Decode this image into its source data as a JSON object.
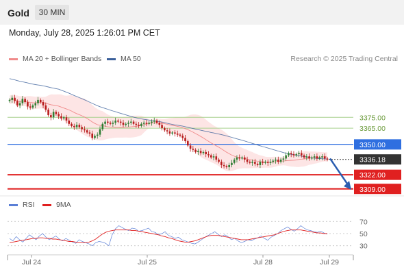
{
  "header": {
    "instrument": "Gold",
    "timeframe": "30 MIN",
    "datetime": "Monday, July 28, 2025 1:26:01 PM CET"
  },
  "legend": {
    "items": [
      {
        "label": "MA 20 + Bollinger Bands",
        "color": "#f08a8a"
      },
      {
        "label": "MA 50",
        "color": "#3a5f9a"
      }
    ],
    "credit": "Research © 2025 Trading Central"
  },
  "rsi_legend": {
    "items": [
      {
        "label": "RSI",
        "color": "#5b7fd6"
      },
      {
        "label": "9MA",
        "color": "#e02020"
      }
    ]
  },
  "colors": {
    "candle_up": "#2e7d32",
    "candle_down": "#b71c1c",
    "bollinger_fill": "#fde2e2",
    "ma20": "#f08a8a",
    "ma50": "#3a5f9a",
    "resistance": "#a8d08d",
    "pivot": "#2f6fe0",
    "support": "#e02020",
    "current_price_tag": "#333333",
    "arrow": "#2a5db0"
  },
  "chart_data": [
    {
      "type": "candlestick",
      "title": "Gold",
      "x_ticks": [
        "Jul 24",
        "Jul 25",
        "Jul 28",
        "Jul 29"
      ],
      "ylim": [
        3300,
        3420
      ],
      "levels": [
        {
          "value": 3375.0,
          "label": "3375.00",
          "kind": "resistance"
        },
        {
          "value": 3365.0,
          "label": "3365.00",
          "kind": "resistance"
        },
        {
          "value": 3350.0,
          "label": "3350.00",
          "kind": "pivot"
        },
        {
          "value": 3336.18,
          "label": "3336.18",
          "kind": "current"
        },
        {
          "value": 3322.0,
          "label": "3322.00",
          "kind": "support"
        },
        {
          "value": 3309.0,
          "label": "3309.00",
          "kind": "support"
        }
      ],
      "close_path": [
        3391,
        3393,
        3390,
        3386,
        3388,
        3392,
        3389,
        3385,
        3384,
        3386,
        3388,
        3391,
        3389,
        3386,
        3382,
        3377,
        3375,
        3380,
        3378,
        3376,
        3374,
        3375,
        3372,
        3369,
        3367,
        3366,
        3368,
        3366,
        3364,
        3363,
        3361,
        3360,
        3356,
        3358,
        3359,
        3364,
        3369,
        3371,
        3370,
        3369,
        3370,
        3372,
        3371,
        3370,
        3368,
        3369,
        3370,
        3371,
        3369,
        3368,
        3367,
        3369,
        3370,
        3369,
        3370,
        3371,
        3372,
        3370,
        3368,
        3365,
        3363,
        3362,
        3360,
        3361,
        3360,
        3359,
        3358,
        3356,
        3353,
        3349,
        3346,
        3345,
        3343,
        3344,
        3342,
        3343,
        3341,
        3340,
        3338,
        3339,
        3336,
        3334,
        3331,
        3330,
        3329,
        3331,
        3333,
        3336,
        3338,
        3337,
        3338,
        3336,
        3334,
        3333,
        3334,
        3332,
        3331,
        3334,
        3333,
        3334,
        3333,
        3334,
        3335,
        3336,
        3334,
        3336,
        3337,
        3340,
        3342,
        3341,
        3340,
        3341,
        3342,
        3340,
        3338,
        3339,
        3337,
        3338,
        3339,
        3337,
        3338,
        3339,
        3337,
        3336
      ]
    },
    {
      "type": "line",
      "title": "RSI",
      "y_ticks": [
        70,
        50,
        30
      ],
      "ylim": [
        15,
        85
      ],
      "series": [
        {
          "name": "RSI",
          "values": [
            42,
            38,
            45,
            40,
            36,
            42,
            48,
            44,
            40,
            46,
            50,
            44,
            40,
            43,
            46,
            41,
            38,
            42,
            39,
            36,
            34,
            40,
            37,
            35,
            33,
            30,
            35,
            37,
            36,
            34,
            30,
            48,
            58,
            63,
            60,
            57,
            55,
            59,
            58,
            54,
            55,
            57,
            59,
            53,
            52,
            48,
            50,
            53,
            47,
            45,
            42,
            44,
            40,
            38,
            36,
            34,
            33,
            36,
            40,
            44,
            47,
            50,
            53,
            49,
            45,
            48,
            45,
            40,
            42,
            38,
            35,
            37,
            40,
            38,
            41,
            43,
            46,
            42,
            39,
            44,
            47,
            50,
            55,
            58,
            61,
            57,
            54,
            58,
            63,
            59,
            56,
            55,
            53,
            52,
            54,
            51,
            49
          ]
        },
        {
          "name": "9MA",
          "values": [
            35,
            36,
            37,
            38,
            39,
            40,
            41,
            42,
            42,
            43,
            43,
            42,
            42,
            41,
            41,
            40,
            39,
            38,
            37,
            37,
            36,
            35,
            35,
            35,
            36,
            38,
            41,
            45,
            49,
            52,
            54,
            55,
            56,
            56,
            56,
            56,
            56,
            55,
            55,
            54,
            53,
            52,
            51,
            50,
            49,
            48,
            46,
            45,
            43,
            42,
            40,
            38,
            37,
            36,
            36,
            37,
            38,
            40,
            42,
            44,
            46,
            47,
            47,
            47,
            46,
            45,
            44,
            43,
            42,
            41,
            40,
            40,
            40,
            41,
            42,
            43,
            44,
            45,
            46,
            47,
            48,
            50,
            52,
            54,
            55,
            56,
            56,
            56,
            56,
            55,
            54,
            53,
            52,
            51,
            51,
            50,
            50
          ]
        }
      ]
    }
  ]
}
